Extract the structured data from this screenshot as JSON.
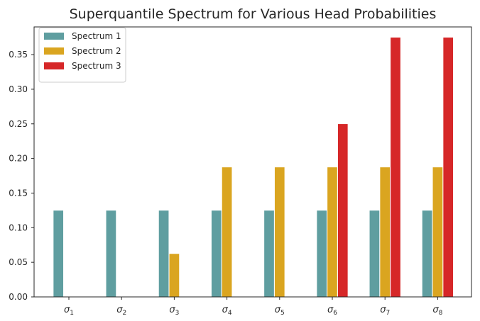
{
  "chart_data": {
    "type": "bar",
    "title": "Superquantile Spectrum for Various Head Probabilities",
    "xlabel": "",
    "ylabel": "",
    "categories": [
      "σ1",
      "σ2",
      "σ3",
      "σ4",
      "σ5",
      "σ6",
      "σ7",
      "σ8"
    ],
    "category_symbol": "σ",
    "category_subscripts": [
      "1",
      "2",
      "3",
      "4",
      "5",
      "6",
      "7",
      "8"
    ],
    "ylim": [
      0,
      0.39
    ],
    "yticks": [
      0.0,
      0.05,
      0.1,
      0.15,
      0.2,
      0.25,
      0.3,
      0.35
    ],
    "ytick_labels": [
      "0.00",
      "0.05",
      "0.10",
      "0.15",
      "0.20",
      "0.25",
      "0.30",
      "0.35"
    ],
    "grid": false,
    "legend_position": "top-left",
    "series": [
      {
        "name": "Spectrum 1",
        "color": "#5f9ea0",
        "values": [
          0.125,
          0.125,
          0.125,
          0.125,
          0.125,
          0.125,
          0.125,
          0.125
        ]
      },
      {
        "name": "Spectrum 2",
        "color": "#daa520",
        "values": [
          0.0,
          0.0,
          0.0625,
          0.1875,
          0.1875,
          0.1875,
          0.1875,
          0.1875
        ]
      },
      {
        "name": "Spectrum 3",
        "color": "#d62728",
        "values": [
          0.0,
          0.0,
          0.0,
          0.0,
          0.0,
          0.25,
          0.375,
          0.375
        ]
      }
    ]
  }
}
